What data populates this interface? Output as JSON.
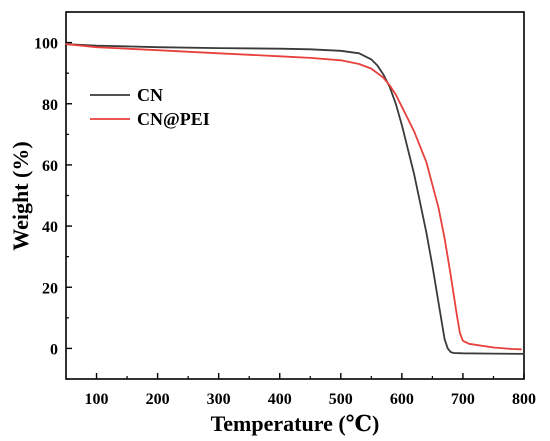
{
  "chart_data": {
    "type": "line",
    "xlabel": "Temperature (℃)",
    "ylabel": "Weight (%)",
    "xlim": [
      50,
      800
    ],
    "ylim": [
      -10,
      110
    ],
    "xticks": [
      100,
      200,
      300,
      400,
      500,
      600,
      700,
      800
    ],
    "yticks": [
      0,
      20,
      40,
      60,
      80,
      100
    ],
    "grid": false,
    "legend_position": "upper-left",
    "series": [
      {
        "name": "CN",
        "color": "#3a3a3a",
        "x": [
          50,
          100,
          200,
          300,
          400,
          450,
          500,
          530,
          550,
          560,
          570,
          580,
          590,
          600,
          620,
          640,
          650,
          660,
          670,
          675,
          680,
          685,
          700,
          750,
          800
        ],
        "y": [
          99.5,
          99,
          98.5,
          98.2,
          98,
          97.8,
          97.3,
          96.5,
          94.5,
          92.5,
          89.5,
          85.5,
          80,
          73,
          57,
          38,
          27,
          15,
          3,
          0,
          -1.2,
          -1.5,
          -1.6,
          -1.7,
          -1.8
        ]
      },
      {
        "name": "CN@PEI",
        "color": "#e8403c",
        "x": [
          50,
          100,
          200,
          300,
          400,
          450,
          500,
          530,
          550,
          570,
          580,
          590,
          600,
          620,
          640,
          660,
          670,
          680,
          690,
          695,
          700,
          710,
          750,
          780,
          795
        ],
        "y": [
          99.5,
          98.5,
          97.5,
          96.5,
          95.5,
          95,
          94.2,
          93,
          91.5,
          88.5,
          86,
          83,
          79,
          71,
          61,
          46,
          36,
          24,
          11,
          5,
          2.5,
          1.5,
          0.3,
          -0.2,
          -0.3
        ]
      }
    ]
  }
}
